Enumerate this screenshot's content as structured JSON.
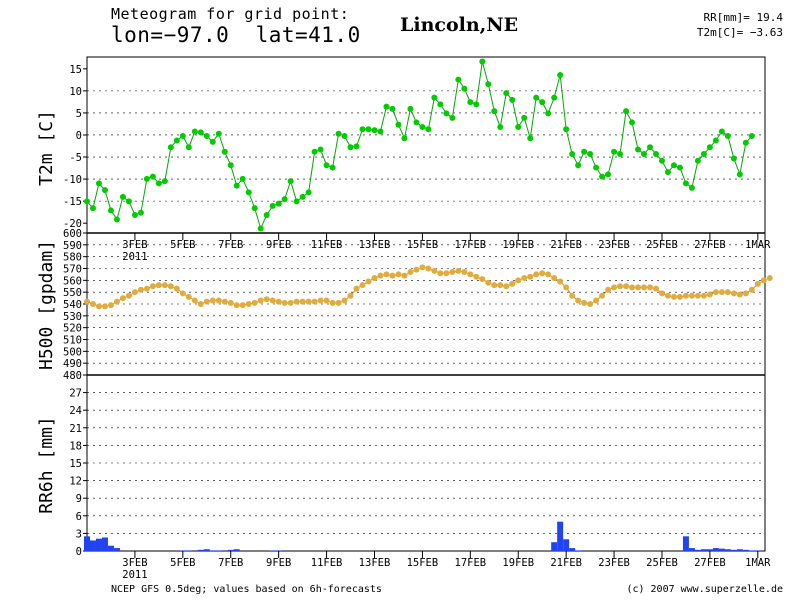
{
  "header": {
    "line1": "Meteogram for grid point:",
    "line2": "lon=−97.0  lat=41.0",
    "city": "Lincoln,NE",
    "rr_readout": "RR[mm]= 19.4",
    "t2m_readout": "T2m[C]= −3.63"
  },
  "footer": {
    "left": "NCEP GFS 0.5deg; values based on 6h-forecasts",
    "right": "(c) 2007 www.superzelle.de"
  },
  "colors": {
    "t2m": "#00cc00",
    "t2m_line": "#00aa00",
    "h500": "#e0ac40",
    "h500_line": "#c8902a",
    "precip": "#2244ee",
    "grid": "#000000"
  },
  "chart_data": [
    {
      "type": "line",
      "ylabel": "T2m [C]",
      "ylim": [
        -22,
        17
      ],
      "yticks": [
        -20,
        -15,
        -10,
        -5,
        0,
        5,
        10,
        15
      ],
      "x_day_range": [
        1,
        29.3
      ],
      "xtick_labels": [
        "3FEB",
        "5FEB",
        "7FEB",
        "9FEB",
        "11FEB",
        "13FEB",
        "15FEB",
        "17FEB",
        "19FEB",
        "21FEB",
        "23FEB",
        "25FEB",
        "27FEB",
        "1MAR"
      ],
      "xtick_days": [
        3,
        5,
        7,
        9,
        11,
        13,
        15,
        17,
        19,
        21,
        23,
        25,
        27,
        29
      ],
      "year_label": "2011",
      "grid": "dashed-horizontal",
      "series": [
        {
          "x_step_hours": 6,
          "values": [
            -15,
            -16.5,
            -11,
            -12.5,
            -17,
            -19,
            -14,
            -15,
            -18,
            -17.5,
            -10,
            -9.5,
            -11,
            -10.5,
            -3,
            -1.5,
            -0.5,
            -3,
            0.5,
            0.3,
            -0.5,
            -1.8,
            0,
            -4,
            -7,
            -11.5,
            -10,
            -13,
            -16.5,
            -21,
            -18,
            -16,
            -15.5,
            -14.5,
            -10.5,
            -15,
            -14,
            -13,
            -4,
            -3.5,
            -7,
            -7.5,
            0,
            -0.5,
            -3,
            -2.8,
            1,
            1,
            0.8,
            0.5,
            6,
            5.5,
            2,
            -1,
            5.5,
            2.5,
            1.5,
            1,
            8,
            6.5,
            4.5,
            3.5,
            12,
            10,
            7,
            6.5,
            16,
            11,
            5,
            1.5,
            9,
            7.5,
            1.5,
            3.5,
            -1,
            8,
            7,
            4.5,
            8,
            13,
            1,
            -4.5,
            -7,
            -4,
            -4.5,
            -7.5,
            -9.5,
            -9,
            -4,
            -4.5,
            5,
            2.5,
            -3.5,
            -4.5,
            -3,
            -4.5,
            -6,
            -8.5,
            -7,
            -7.5,
            -11,
            -12,
            -6,
            -4.5,
            -3,
            -1.5,
            0.5,
            -0.5,
            -5.5,
            -9,
            -2,
            -0.5
          ]
        }
      ]
    },
    {
      "type": "line",
      "ylabel": "H500 [gpdam]",
      "ylim": [
        480,
        600
      ],
      "yticks": [
        480,
        490,
        500,
        510,
        520,
        530,
        540,
        550,
        560,
        570,
        580,
        590,
        600
      ],
      "grid": "dashed-horizontal",
      "series": [
        {
          "x_step_hours": 6,
          "values": [
            542,
            540,
            538,
            538,
            539,
            542,
            545,
            547,
            550,
            552,
            553,
            555,
            556,
            556,
            555,
            553,
            549,
            546,
            543,
            540,
            542,
            543,
            543,
            542,
            541,
            539,
            539,
            540,
            541,
            543,
            544,
            543,
            542,
            541,
            541,
            542,
            542,
            542,
            542,
            543,
            543,
            541,
            541,
            543,
            547,
            553,
            556,
            559,
            562,
            564,
            565,
            564,
            565,
            564,
            567,
            569,
            571,
            570,
            568,
            566,
            566,
            567,
            568,
            567,
            565,
            563,
            561,
            558,
            556,
            556,
            555,
            557,
            560,
            562,
            563,
            565,
            566,
            565,
            562,
            559,
            554,
            547,
            543,
            541,
            540,
            543,
            547,
            552,
            554,
            555,
            555,
            554,
            554,
            554,
            554,
            553,
            549,
            547,
            546,
            546,
            547,
            547,
            547,
            547,
            548,
            550,
            550,
            550,
            549,
            548,
            549,
            552,
            557,
            560,
            562
          ]
        }
      ]
    },
    {
      "type": "bar",
      "ylabel": "RR6h [mm]",
      "ylim": [
        0,
        30
      ],
      "yticks": [
        0,
        3,
        6,
        9,
        12,
        15,
        18,
        21,
        24,
        27
      ],
      "grid": "dashed-horizontal",
      "x_step_hours": 6,
      "values": [
        2.5,
        1.8,
        2.1,
        2.3,
        0.9,
        0.5,
        0,
        0,
        0,
        0,
        0,
        0,
        0,
        0,
        0,
        0,
        0.1,
        0.1,
        0,
        0.2,
        0.3,
        0.1,
        0.1,
        0,
        0.2,
        0.3,
        0,
        0,
        0,
        0,
        0,
        0.1,
        0.1,
        0,
        0,
        0,
        0,
        0,
        0,
        0,
        0,
        0,
        0,
        0,
        0,
        0,
        0,
        0,
        0,
        0,
        0,
        0,
        0,
        0,
        0,
        0,
        0,
        0,
        0,
        0,
        0,
        0,
        0,
        0,
        0,
        0,
        0,
        0,
        0,
        0,
        0,
        0,
        0,
        0,
        0,
        0,
        0,
        0,
        1.5,
        5,
        2,
        0.5,
        0.1,
        0,
        0,
        0,
        0,
        0,
        0,
        0,
        0,
        0,
        0,
        0,
        0,
        0,
        0,
        0,
        0,
        0,
        2.5,
        0.5,
        0.2,
        0.3,
        0.3,
        0.5,
        0.4,
        0.3,
        0.2,
        0.3,
        0.2,
        0.1,
        0.1,
        0,
        0,
        0
      ]
    }
  ]
}
